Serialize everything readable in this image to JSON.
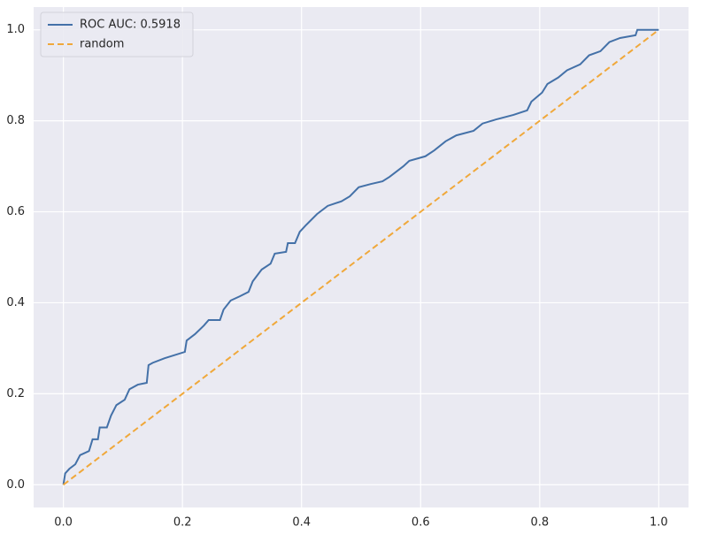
{
  "chart_data": {
    "type": "line",
    "xlim": [
      -0.05,
      1.05
    ],
    "ylim": [
      -0.05,
      1.05
    ],
    "xticks": [
      {
        "value": 0,
        "label": "0.0"
      },
      0.2,
      0.4,
      0.6,
      0.8,
      {
        "value": 1,
        "label": "1.0"
      }
    ],
    "yticks": [
      {
        "value": 0,
        "label": "0.0"
      },
      0.2,
      0.4,
      0.6,
      0.8,
      {
        "value": 1,
        "label": "1.0"
      }
    ],
    "grid": true,
    "legend": "upper left",
    "series": [
      {
        "name": "ROC AUC: 0.5918",
        "color": "#4471a8",
        "linestyle": "solid",
        "x": [
          0,
          0.003,
          0.01,
          0.02,
          0.028,
          0.043,
          0.049,
          0.058,
          0.061,
          0.073,
          0.08,
          0.089,
          0.103,
          0.111,
          0.125,
          0.14,
          0.143,
          0.15,
          0.17,
          0.204,
          0.207,
          0.221,
          0.236,
          0.244,
          0.263,
          0.269,
          0.281,
          0.296,
          0.311,
          0.318,
          0.333,
          0.348,
          0.355,
          0.374,
          0.377,
          0.389,
          0.397,
          0.407,
          0.426,
          0.444,
          0.467,
          0.481,
          0.496,
          0.516,
          0.536,
          0.548,
          0.571,
          0.581,
          0.608,
          0.623,
          0.642,
          0.66,
          0.689,
          0.704,
          0.727,
          0.756,
          0.779,
          0.786,
          0.804,
          0.813,
          0.831,
          0.846,
          0.868,
          0.883,
          0.902,
          0.917,
          0.935,
          0.961,
          0.964,
          1
        ],
        "values": [
          0,
          0.025,
          0.035,
          0.045,
          0.065,
          0.074,
          0.1,
          0.1,
          0.126,
          0.126,
          0.152,
          0.175,
          0.187,
          0.21,
          0.22,
          0.224,
          0.263,
          0.268,
          0.278,
          0.292,
          0.317,
          0.331,
          0.35,
          0.362,
          0.362,
          0.385,
          0.405,
          0.414,
          0.424,
          0.447,
          0.473,
          0.486,
          0.508,
          0.512,
          0.531,
          0.531,
          0.556,
          0.57,
          0.595,
          0.613,
          0.623,
          0.634,
          0.654,
          0.661,
          0.667,
          0.677,
          0.7,
          0.712,
          0.722,
          0.735,
          0.755,
          0.768,
          0.778,
          0.794,
          0.803,
          0.813,
          0.823,
          0.842,
          0.862,
          0.881,
          0.895,
          0.911,
          0.924,
          0.944,
          0.953,
          0.973,
          0.982,
          0.988,
          1,
          1
        ]
      },
      {
        "name": "random",
        "color": "#f0a83a",
        "linestyle": "dashed",
        "x": [
          0,
          1
        ],
        "values": [
          0,
          1
        ]
      }
    ]
  }
}
